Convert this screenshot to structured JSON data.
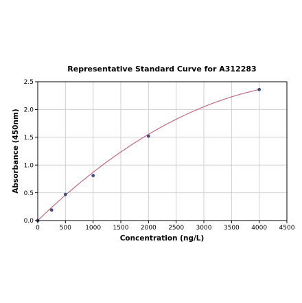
{
  "chart_data": {
    "type": "scatter",
    "title": "Representative Standard Curve for A312283",
    "xlabel": "Concentration (ng/L)",
    "ylabel": "Absorbance (450nm)",
    "xlim": [
      0,
      4500
    ],
    "ylim": [
      0,
      2.5
    ],
    "x_ticks": [
      "0",
      "500",
      "1000",
      "1500",
      "2000",
      "2500",
      "3000",
      "3500",
      "4000",
      "4500"
    ],
    "y_ticks": [
      "0.0",
      "0.5",
      "1.0",
      "1.5",
      "2.0",
      "2.5"
    ],
    "grid": true,
    "series": [
      {
        "points": [
          {
            "x": 0,
            "y": 0.0
          },
          {
            "x": 250,
            "y": 0.19
          },
          {
            "x": 500,
            "y": 0.47
          },
          {
            "x": 1000,
            "y": 0.81
          },
          {
            "x": 2000,
            "y": 1.52
          },
          {
            "x": 4000,
            "y": 2.36
          }
        ],
        "color": "#3f4f7a"
      }
    ],
    "fit_curve": {
      "type": "polynomial",
      "coefficients": [
        0.0,
        0.000963,
        -9.33e-08
      ],
      "color": "#c46a7e"
    }
  }
}
